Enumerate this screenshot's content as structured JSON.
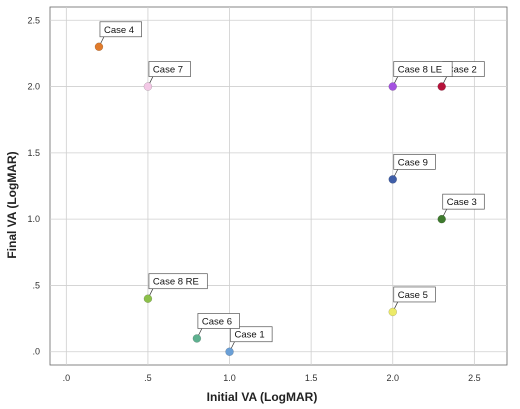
{
  "chart_data": {
    "type": "scatter",
    "xlabel": "Initial VA (LogMAR)",
    "ylabel": "Final VA (LogMAR)",
    "xlim": [
      -0.1,
      2.7
    ],
    "ylim": [
      -0.1,
      2.6
    ],
    "grid": true,
    "x_ticks": [
      0,
      0.5,
      1.0,
      1.5,
      2.0,
      2.5
    ],
    "x_tick_labels": [
      ".0",
      ".5",
      "1.0",
      "1.5",
      "2.0",
      "2.5"
    ],
    "y_ticks": [
      0,
      0.5,
      1.0,
      1.5,
      2.0,
      2.5
    ],
    "y_tick_labels": [
      ".0",
      ".5",
      "1.0",
      "1.5",
      "2.0",
      "2.5"
    ],
    "points": [
      {
        "label": "Case 1",
        "x": 1.0,
        "y": 0.0,
        "color": "#6a9fd6"
      },
      {
        "label": "Case 2",
        "x": 2.3,
        "y": 2.0,
        "color": "#b5123a"
      },
      {
        "label": "Case 3",
        "x": 2.3,
        "y": 1.0,
        "color": "#3e7a2e"
      },
      {
        "label": "Case 4",
        "x": 0.2,
        "y": 2.3,
        "color": "#e07b2c"
      },
      {
        "label": "Case 5",
        "x": 2.0,
        "y": 0.3,
        "color": "#ecea68"
      },
      {
        "label": "Case 6",
        "x": 0.8,
        "y": 0.1,
        "color": "#5eb08f"
      },
      {
        "label": "Case 7",
        "x": 0.5,
        "y": 2.0,
        "color": "#f3c8e6"
      },
      {
        "label": "Case 8 LE",
        "x": 2.0,
        "y": 2.0,
        "color": "#a452e0"
      },
      {
        "label": "Case 8 RE",
        "x": 0.5,
        "y": 0.4,
        "color": "#8cc04a"
      },
      {
        "label": "Case 9",
        "x": 2.0,
        "y": 1.3,
        "color": "#3f5ea8"
      }
    ]
  }
}
